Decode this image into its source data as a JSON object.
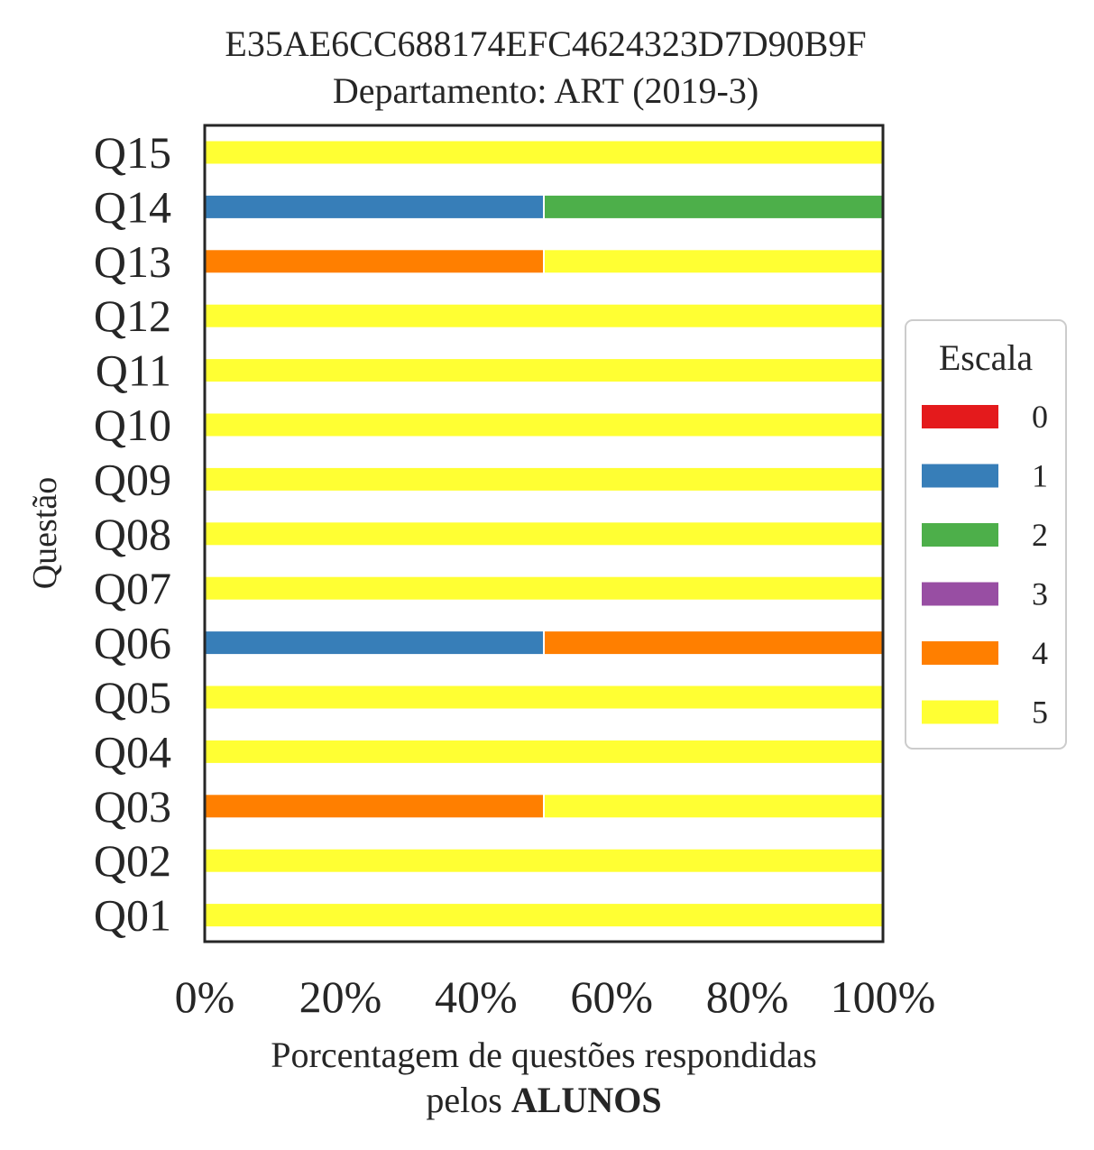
{
  "chart_data": {
    "type": "bar",
    "orientation": "horizontal",
    "stacked": true,
    "title_line1": "E35AE6CC688174EFC4624323D7D90B9F",
    "title_line2": "Departamento: ART (2019-3)",
    "ylabel": "Questão",
    "xlabel_line1": "Porcentagem de questões respondidas",
    "xlabel_line2_prefix": "pelos ",
    "xlabel_line2_bold": "ALUNOS",
    "xlim": [
      0,
      100
    ],
    "x_ticks": [
      "0%",
      "20%",
      "40%",
      "60%",
      "80%",
      "100%"
    ],
    "x_tick_values": [
      0,
      20,
      40,
      60,
      80,
      100
    ],
    "categories": [
      "Q01",
      "Q02",
      "Q03",
      "Q04",
      "Q05",
      "Q06",
      "Q07",
      "Q08",
      "Q09",
      "Q10",
      "Q11",
      "Q12",
      "Q13",
      "Q14",
      "Q15"
    ],
    "legend_title": "Escala",
    "legend_position": "right",
    "grid": false,
    "series": [
      {
        "name": "0",
        "color": "#e41a1c",
        "values": [
          0,
          0,
          0,
          0,
          0,
          0,
          0,
          0,
          0,
          0,
          0,
          0,
          0,
          0,
          0
        ]
      },
      {
        "name": "1",
        "color": "#377eb8",
        "values": [
          0,
          0,
          0,
          0,
          0,
          50,
          0,
          0,
          0,
          0,
          0,
          0,
          0,
          50,
          0
        ]
      },
      {
        "name": "2",
        "color": "#4daf4a",
        "values": [
          0,
          0,
          0,
          0,
          0,
          0,
          0,
          0,
          0,
          0,
          0,
          0,
          0,
          50,
          0
        ]
      },
      {
        "name": "3",
        "color": "#984ea3",
        "values": [
          0,
          0,
          0,
          0,
          0,
          0,
          0,
          0,
          0,
          0,
          0,
          0,
          0,
          0,
          0
        ]
      },
      {
        "name": "4",
        "color": "#ff7f00",
        "values": [
          0,
          0,
          50,
          0,
          0,
          50,
          0,
          0,
          0,
          0,
          0,
          0,
          50,
          0,
          0
        ]
      },
      {
        "name": "5",
        "color": "#ffff33",
        "values": [
          100,
          100,
          50,
          100,
          100,
          0,
          100,
          100,
          100,
          100,
          100,
          100,
          50,
          0,
          100
        ]
      }
    ]
  }
}
